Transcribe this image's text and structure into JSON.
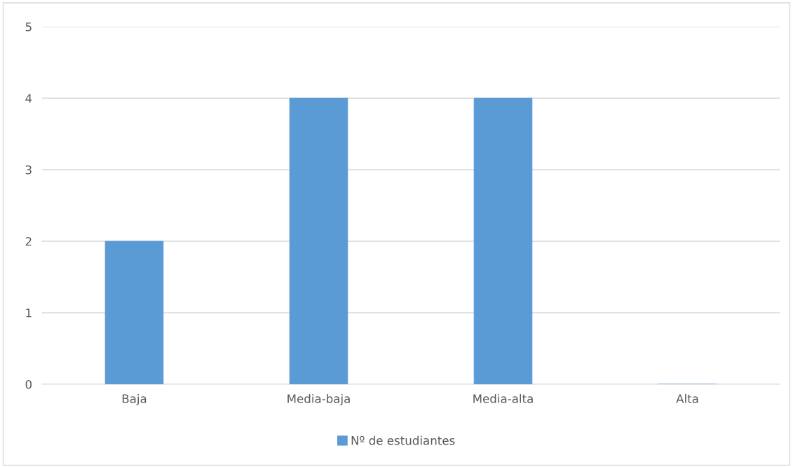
{
  "chart_data": {
    "type": "bar",
    "categories": [
      "Baja",
      "Media-baja",
      "Media-alta",
      "Alta"
    ],
    "series": [
      {
        "name": "Nº de estudiantes",
        "color": "#5b9bd5",
        "values": [
          2,
          4,
          4,
          0
        ]
      }
    ],
    "ylim": [
      0,
      5
    ],
    "yticks": [
      0,
      1,
      2,
      3,
      4,
      5
    ],
    "grid": "y",
    "legend": "bottom"
  }
}
